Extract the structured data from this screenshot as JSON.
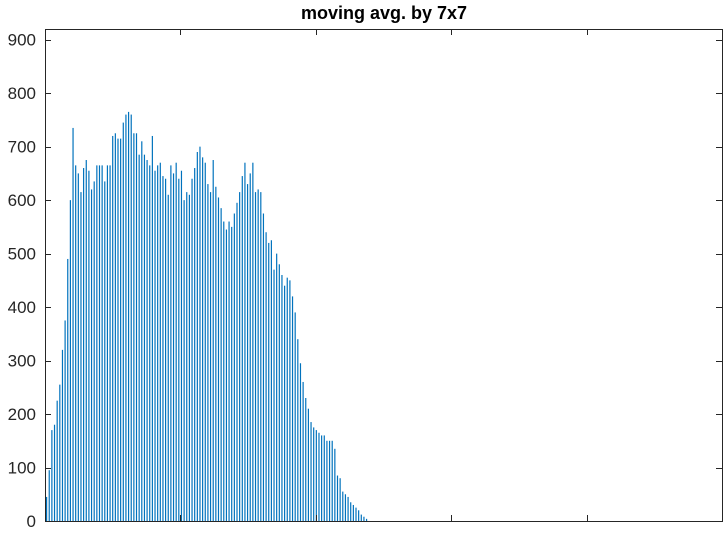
{
  "chart_data": {
    "type": "bar",
    "title": "moving avg. by 7x7",
    "xlabel": "",
    "ylabel": "",
    "xlim": [
      0,
      256
    ],
    "ylim": [
      0,
      920
    ],
    "yticks": [
      0,
      100,
      200,
      300,
      400,
      500,
      600,
      700,
      800,
      900
    ],
    "xtick_count": 6,
    "grid": false,
    "bar_color": "#0072BD",
    "x": [
      0,
      1,
      2,
      3,
      4,
      5,
      6,
      7,
      8,
      9,
      10,
      11,
      12,
      13,
      14,
      15,
      16,
      17,
      18,
      19,
      20,
      21,
      22,
      23,
      24,
      25,
      26,
      27,
      28,
      29,
      30,
      31,
      32,
      33,
      34,
      35,
      36,
      37,
      38,
      39,
      40,
      41,
      42,
      43,
      44,
      45,
      46,
      47,
      48,
      49,
      50,
      51,
      52,
      53,
      54,
      55,
      56,
      57,
      58,
      59,
      60,
      61,
      62,
      63,
      64,
      65,
      66,
      67,
      68,
      69,
      70,
      71,
      72,
      73,
      74,
      75,
      76,
      77,
      78,
      79,
      80,
      81,
      82,
      83,
      84,
      85,
      86,
      87,
      88,
      89,
      90,
      91,
      92,
      93,
      94,
      95,
      96,
      97,
      98,
      99,
      100,
      101,
      102,
      103,
      104,
      105,
      106,
      107,
      108,
      109,
      110,
      111,
      112,
      113,
      114,
      115,
      116,
      117,
      118,
      119,
      120,
      121
    ],
    "values": [
      45,
      95,
      170,
      180,
      225,
      255,
      320,
      375,
      490,
      600,
      735,
      665,
      650,
      615,
      660,
      675,
      655,
      620,
      635,
      665,
      665,
      665,
      635,
      665,
      665,
      720,
      725,
      715,
      715,
      745,
      760,
      765,
      760,
      725,
      725,
      685,
      710,
      685,
      675,
      665,
      720,
      655,
      665,
      670,
      645,
      640,
      610,
      665,
      650,
      670,
      640,
      655,
      600,
      615,
      610,
      640,
      660,
      690,
      700,
      680,
      670,
      630,
      615,
      675,
      625,
      605,
      585,
      560,
      545,
      560,
      550,
      575,
      595,
      615,
      645,
      670,
      630,
      650,
      670,
      615,
      620,
      615,
      575,
      540,
      520,
      525,
      470,
      500,
      480,
      460,
      440,
      455,
      450,
      420,
      390,
      340,
      295,
      260,
      230,
      210,
      185,
      175,
      170,
      165,
      160,
      160,
      150,
      150,
      150,
      135,
      85,
      80,
      55,
      50,
      45,
      35,
      30,
      25,
      20,
      12,
      8,
      4
    ]
  }
}
